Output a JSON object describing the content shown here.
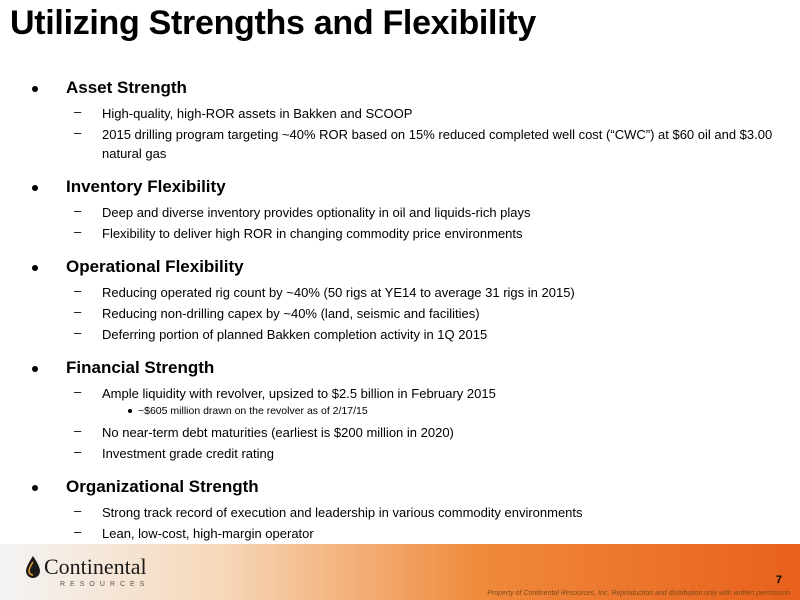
{
  "title": "Utilizing Strengths and Flexibility",
  "sections": [
    {
      "heading": "Asset Strength",
      "items": [
        "High-quality, high-ROR assets in Bakken and SCOOP",
        "2015 drilling program targeting ~40% ROR based on 15% reduced completed well cost (“CWC”) at $60 oil and $3.00 natural gas"
      ]
    },
    {
      "heading": "Inventory Flexibility",
      "items": [
        "Deep and diverse inventory provides optionality in oil and liquids-rich plays",
        "Flexibility to deliver high ROR in changing commodity price environments"
      ]
    },
    {
      "heading": "Operational Flexibility",
      "items": [
        "Reducing operated rig count by ~40% (50 rigs at YE14 to average 31 rigs in 2015)",
        "Reducing non-drilling capex by ~40% (land, seismic and facilities)",
        "Deferring portion of planned Bakken completion activity in 1Q 2015"
      ]
    },
    {
      "heading": "Financial Strength",
      "items": [
        "Ample liquidity with revolver, upsized to $2.5 billion in February 2015",
        "No near-term debt maturities (earliest is $200 million in 2020)",
        "Investment grade credit rating"
      ],
      "subitem": "~$605 million drawn on the revolver as of 2/17/15"
    },
    {
      "heading": "Organizational Strength",
      "items": [
        "Strong track record of execution and leadership in various commodity environments",
        "Lean, low-cost, high-margin operator"
      ]
    }
  ],
  "footer": {
    "logo_name": "Continental",
    "logo_sub": "RESOURCES",
    "page_number": "7",
    "disclaimer": "Property of Continental Resources, Inc. Reproduction and distribution only with written permission"
  },
  "colors": {
    "footer_gradient_end": "#e8601c",
    "footer_gradient_start": "#f4f4f4"
  }
}
